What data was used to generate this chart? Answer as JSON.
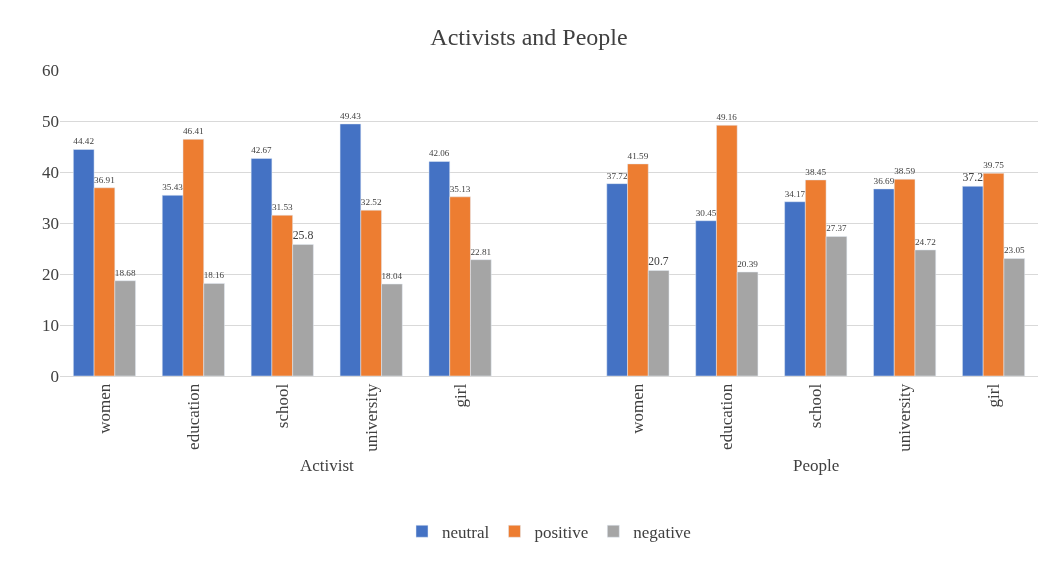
{
  "chart_data": {
    "type": "bar",
    "title": "Activists and People",
    "categories": [
      "women",
      "education",
      "school",
      "university",
      "girl",
      null,
      "women",
      "education",
      "school",
      "university",
      "girl"
    ],
    "series": [
      {
        "name": "neutral",
        "color": "#4472c4",
        "values": [
          44.42,
          35.43,
          42.67,
          49.43,
          42.06,
          null,
          37.72,
          30.45,
          34.17,
          36.69,
          37.2
        ]
      },
      {
        "name": "positive",
        "color": "#ed7d31",
        "values": [
          36.91,
          46.41,
          31.53,
          32.52,
          35.13,
          null,
          41.59,
          49.16,
          38.45,
          38.59,
          39.75
        ]
      },
      {
        "name": "negative",
        "color": "#a5a5a5",
        "values": [
          18.68,
          18.16,
          25.8,
          18.04,
          22.81,
          null,
          20.7,
          20.39,
          27.37,
          24.72,
          23.05
        ]
      }
    ],
    "annotations": [
      "Activist",
      "People"
    ],
    "ylim": [
      0,
      60
    ],
    "yticks": [
      0,
      10,
      20,
      30,
      40,
      50,
      60
    ],
    "grid": "y",
    "legend": "bottom",
    "data_labels": true
  }
}
